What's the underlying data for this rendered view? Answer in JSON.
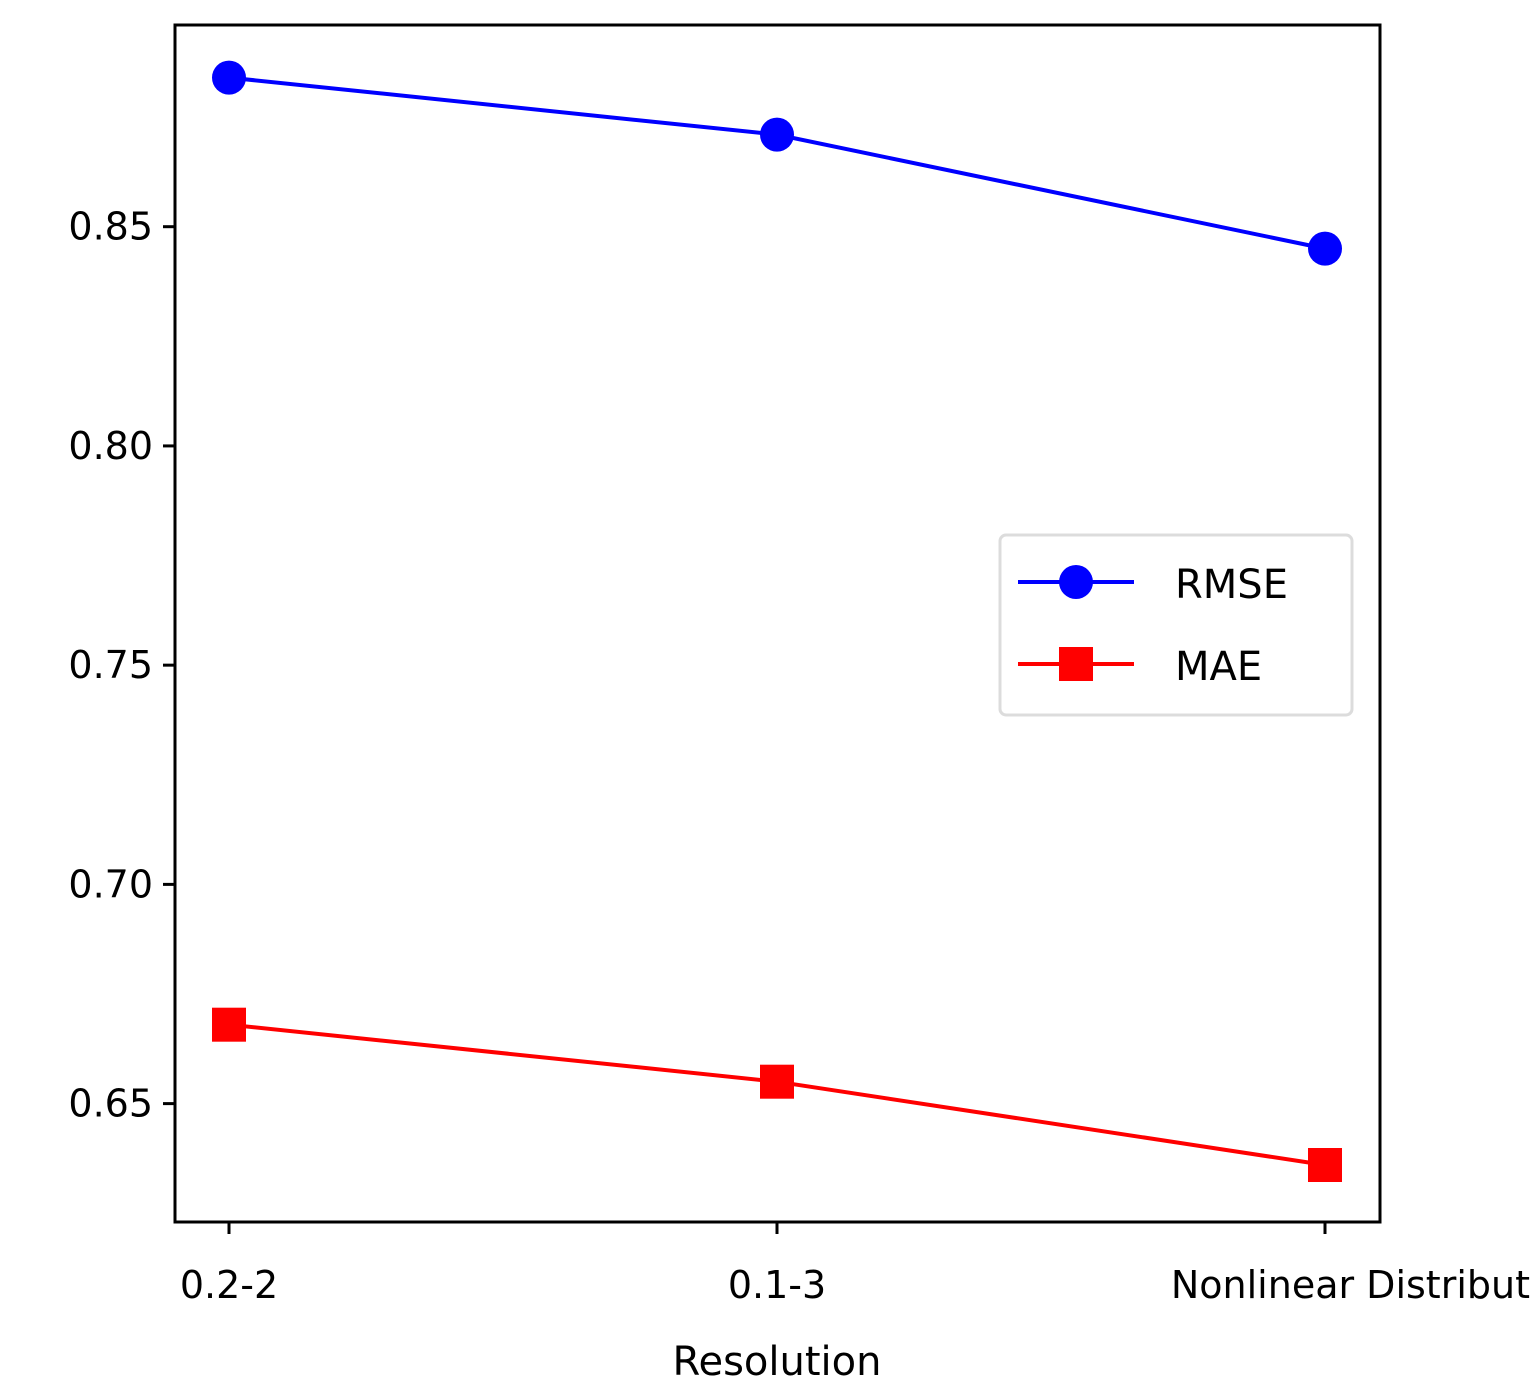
{
  "chart_data": {
    "type": "line",
    "title": "",
    "xlabel": "Resolution",
    "ylabel": "",
    "categories": [
      "0.2-2",
      "0.1-3",
      "Nonlinear Distribut"
    ],
    "ylim": [
      0.623,
      0.896
    ],
    "yticks": [
      "0.65",
      "0.70",
      "0.75",
      "0.80",
      "0.85"
    ],
    "ytick_values": [
      0.65,
      0.7,
      0.75,
      0.8,
      0.85
    ],
    "grid": false,
    "legend_position": "center-right",
    "series": [
      {
        "name": "RMSE",
        "color": "#0000ff",
        "marker": "circle",
        "values": [
          0.884,
          0.871,
          0.845
        ]
      },
      {
        "name": "MAE",
        "color": "#ff0000",
        "marker": "square",
        "values": [
          0.668,
          0.655,
          0.636
        ]
      }
    ]
  }
}
